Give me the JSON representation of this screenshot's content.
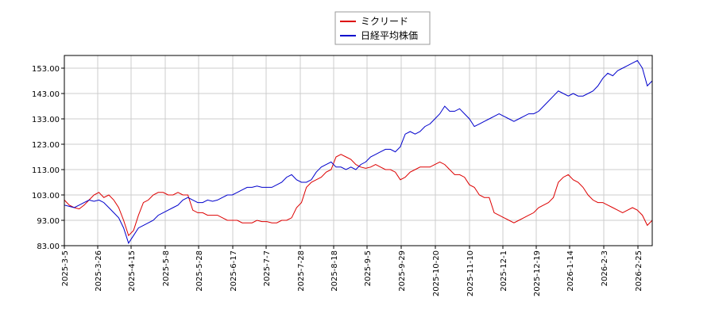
{
  "chart_data": {
    "type": "line",
    "title": "",
    "xlabel": "",
    "ylabel": "",
    "ylim": [
      83,
      158
    ],
    "y_ticks": [
      "83.00",
      "93.00",
      "103.00",
      "113.00",
      "123.00",
      "133.00",
      "143.00",
      "153.00"
    ],
    "x_ticks": [
      "2025-3-5",
      "2025-3-26",
      "2025-4-15",
      "2025-5-8",
      "2025-5-28",
      "2025-6-17",
      "2025-7-7",
      "2025-7-28",
      "2025-8-18",
      "2025-9-5",
      "2025-9-29",
      "2025-10-20",
      "2025-11-10",
      "2025-12-1",
      "2025-12-19",
      "2026-1-14",
      "2026-2-3",
      "2026-2-25"
    ],
    "grid": true,
    "legend": "top-center",
    "series": [
      {
        "name": "ミクリード",
        "color": "#dd0000",
        "points": [
          [
            0,
            101
          ],
          [
            1,
            99
          ],
          [
            2,
            98
          ],
          [
            3,
            97.5
          ],
          [
            4,
            99
          ],
          [
            5,
            101
          ],
          [
            6,
            103
          ],
          [
            7,
            104
          ],
          [
            8,
            102
          ],
          [
            9,
            103
          ],
          [
            10,
            101
          ],
          [
            11,
            98
          ],
          [
            12,
            93
          ],
          [
            13,
            87
          ],
          [
            14,
            89
          ],
          [
            15,
            95
          ],
          [
            16,
            100
          ],
          [
            17,
            101
          ],
          [
            18,
            103
          ],
          [
            19,
            104
          ],
          [
            20,
            104
          ],
          [
            21,
            103
          ],
          [
            22,
            103
          ],
          [
            23,
            104
          ],
          [
            24,
            103
          ],
          [
            25,
            103
          ],
          [
            26,
            97
          ],
          [
            27,
            96
          ],
          [
            28,
            96
          ],
          [
            29,
            95
          ],
          [
            30,
            95
          ],
          [
            31,
            95
          ],
          [
            32,
            94
          ],
          [
            33,
            93
          ],
          [
            34,
            93
          ],
          [
            35,
            93
          ],
          [
            36,
            92
          ],
          [
            37,
            92
          ],
          [
            38,
            92
          ],
          [
            39,
            93
          ],
          [
            40,
            92.5
          ],
          [
            41,
            92.5
          ],
          [
            42,
            92
          ],
          [
            43,
            92
          ],
          [
            44,
            93
          ],
          [
            45,
            93
          ],
          [
            46,
            94
          ],
          [
            47,
            98
          ],
          [
            48,
            100
          ],
          [
            49,
            106
          ],
          [
            50,
            108
          ],
          [
            51,
            109
          ],
          [
            52,
            110
          ],
          [
            53,
            112
          ],
          [
            54,
            113
          ],
          [
            55,
            118
          ],
          [
            56,
            119
          ],
          [
            57,
            118
          ],
          [
            58,
            117
          ],
          [
            59,
            115
          ],
          [
            60,
            114
          ],
          [
            61,
            113.5
          ],
          [
            62,
            114
          ],
          [
            63,
            115
          ],
          [
            64,
            114
          ],
          [
            65,
            113
          ],
          [
            66,
            113
          ],
          [
            67,
            112
          ],
          [
            68,
            109
          ],
          [
            69,
            110
          ],
          [
            70,
            112
          ],
          [
            71,
            113
          ],
          [
            72,
            114
          ],
          [
            73,
            114
          ],
          [
            74,
            114
          ],
          [
            75,
            115
          ],
          [
            76,
            116
          ],
          [
            77,
            115
          ],
          [
            78,
            113
          ],
          [
            79,
            111
          ],
          [
            80,
            111
          ],
          [
            81,
            110
          ],
          [
            82,
            107
          ],
          [
            83,
            106
          ],
          [
            84,
            103
          ],
          [
            85,
            102
          ],
          [
            86,
            102
          ],
          [
            87,
            96
          ],
          [
            88,
            95
          ],
          [
            89,
            94
          ],
          [
            90,
            93
          ],
          [
            91,
            92
          ],
          [
            92,
            93
          ],
          [
            93,
            94
          ],
          [
            94,
            95
          ],
          [
            95,
            96
          ],
          [
            96,
            98
          ],
          [
            97,
            99
          ],
          [
            98,
            100
          ],
          [
            99,
            102
          ],
          [
            100,
            108
          ],
          [
            101,
            110
          ],
          [
            102,
            111
          ],
          [
            103,
            109
          ],
          [
            104,
            108
          ],
          [
            105,
            106
          ],
          [
            106,
            103
          ],
          [
            107,
            101
          ],
          [
            108,
            100
          ],
          [
            109,
            100
          ],
          [
            110,
            99
          ],
          [
            111,
            98
          ],
          [
            112,
            97
          ],
          [
            113,
            96
          ],
          [
            114,
            97
          ],
          [
            115,
            98
          ],
          [
            116,
            97
          ],
          [
            117,
            95
          ],
          [
            118,
            91
          ],
          [
            119,
            93
          ]
        ]
      },
      {
        "name": "日経平均株価",
        "color": "#0000cc",
        "points": [
          [
            0,
            99
          ],
          [
            1,
            98.5
          ],
          [
            2,
            98
          ],
          [
            3,
            99
          ],
          [
            4,
            100
          ],
          [
            5,
            101
          ],
          [
            6,
            100.5
          ],
          [
            7,
            101
          ],
          [
            8,
            100
          ],
          [
            9,
            98
          ],
          [
            10,
            96
          ],
          [
            11,
            94
          ],
          [
            12,
            90
          ],
          [
            13,
            84
          ],
          [
            14,
            87
          ],
          [
            15,
            90
          ],
          [
            16,
            91
          ],
          [
            17,
            92
          ],
          [
            18,
            93
          ],
          [
            19,
            95
          ],
          [
            20,
            96
          ],
          [
            21,
            97
          ],
          [
            22,
            98
          ],
          [
            23,
            99
          ],
          [
            24,
            101
          ],
          [
            25,
            102
          ],
          [
            26,
            101
          ],
          [
            27,
            100
          ],
          [
            28,
            100
          ],
          [
            29,
            101
          ],
          [
            30,
            100.5
          ],
          [
            31,
            101
          ],
          [
            32,
            102
          ],
          [
            33,
            103
          ],
          [
            34,
            103
          ],
          [
            35,
            104
          ],
          [
            36,
            105
          ],
          [
            37,
            106
          ],
          [
            38,
            106
          ],
          [
            39,
            106.5
          ],
          [
            40,
            106
          ],
          [
            41,
            106
          ],
          [
            42,
            106
          ],
          [
            43,
            107
          ],
          [
            44,
            108
          ],
          [
            45,
            110
          ],
          [
            46,
            111
          ],
          [
            47,
            109
          ],
          [
            48,
            108
          ],
          [
            49,
            108
          ],
          [
            50,
            109
          ],
          [
            51,
            112
          ],
          [
            52,
            114
          ],
          [
            53,
            115
          ],
          [
            54,
            116
          ],
          [
            55,
            114
          ],
          [
            56,
            114
          ],
          [
            57,
            113
          ],
          [
            58,
            114
          ],
          [
            59,
            113
          ],
          [
            60,
            115
          ],
          [
            61,
            116
          ],
          [
            62,
            118
          ],
          [
            63,
            119
          ],
          [
            64,
            120
          ],
          [
            65,
            121
          ],
          [
            66,
            121
          ],
          [
            67,
            120
          ],
          [
            68,
            122
          ],
          [
            69,
            127
          ],
          [
            70,
            128
          ],
          [
            71,
            127
          ],
          [
            72,
            128
          ],
          [
            73,
            130
          ],
          [
            74,
            131
          ],
          [
            75,
            133
          ],
          [
            76,
            135
          ],
          [
            77,
            138
          ],
          [
            78,
            136
          ],
          [
            79,
            136
          ],
          [
            80,
            137
          ],
          [
            81,
            135
          ],
          [
            82,
            133
          ],
          [
            83,
            130
          ],
          [
            84,
            131
          ],
          [
            85,
            132
          ],
          [
            86,
            133
          ],
          [
            87,
            134
          ],
          [
            88,
            135
          ],
          [
            89,
            134
          ],
          [
            90,
            133
          ],
          [
            91,
            132
          ],
          [
            92,
            133
          ],
          [
            93,
            134
          ],
          [
            94,
            135
          ],
          [
            95,
            135
          ],
          [
            96,
            136
          ],
          [
            97,
            138
          ],
          [
            98,
            140
          ],
          [
            99,
            142
          ],
          [
            100,
            144
          ],
          [
            101,
            143
          ],
          [
            102,
            142
          ],
          [
            103,
            143
          ],
          [
            104,
            142
          ],
          [
            105,
            142
          ],
          [
            106,
            143
          ],
          [
            107,
            144
          ],
          [
            108,
            146
          ],
          [
            109,
            149
          ],
          [
            110,
            151
          ],
          [
            111,
            150
          ],
          [
            112,
            152
          ],
          [
            113,
            153
          ],
          [
            114,
            154
          ],
          [
            115,
            155
          ],
          [
            116,
            156
          ],
          [
            117,
            153
          ],
          [
            118,
            146
          ],
          [
            119,
            148
          ]
        ]
      }
    ]
  }
}
